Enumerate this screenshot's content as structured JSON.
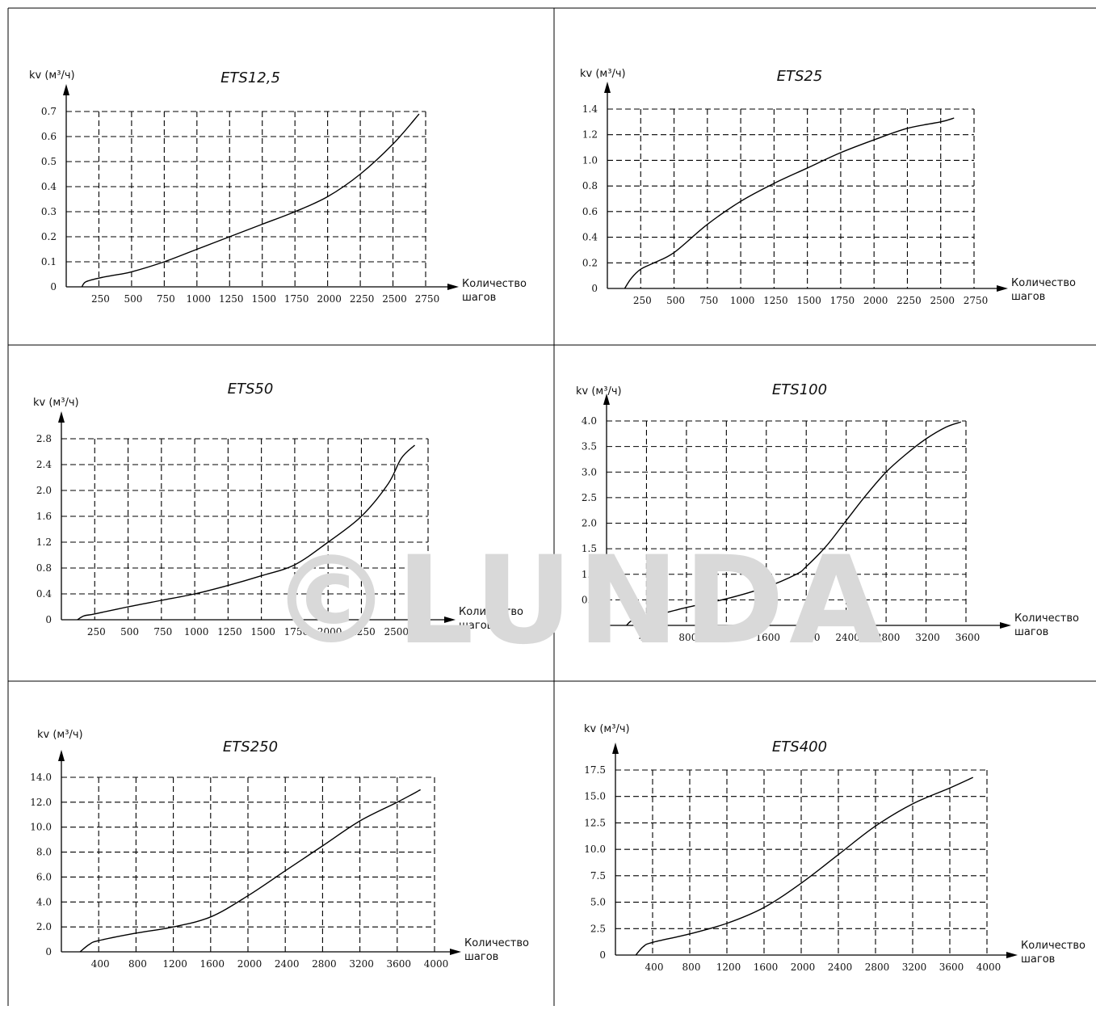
{
  "watermark": "©LUNDA",
  "colors": {
    "line": "#000000",
    "watermark": "#d9d9d9"
  },
  "chart_data": [
    {
      "type": "line",
      "title": "ETS12,5",
      "ylabel": "kv (м³/ч)",
      "xlabel": "Количество шагов",
      "x_ticks": [
        250,
        500,
        750,
        1000,
        1250,
        1500,
        1750,
        2000,
        2250,
        2500,
        2750
      ],
      "y_ticks": [
        "0",
        "0.1",
        "0.2",
        "0.3",
        "0.4",
        "0.5",
        "0.6",
        "0.7"
      ],
      "xlim": [
        0,
        2750
      ],
      "ylim": [
        0,
        0.7
      ],
      "grid": true,
      "series": [
        {
          "x": [
            120,
            150,
            250,
            350,
            500,
            750,
            1000,
            1250,
            1500,
            1750,
            2000,
            2250,
            2500,
            2700
          ],
          "y": [
            0.0,
            0.02,
            0.035,
            0.045,
            0.06,
            0.1,
            0.15,
            0.2,
            0.25,
            0.3,
            0.36,
            0.45,
            0.57,
            0.69
          ]
        }
      ]
    },
    {
      "type": "line",
      "title": "ETS25",
      "ylabel": "kv (м³/ч)",
      "xlabel": "Количество шагов",
      "x_ticks": [
        250,
        500,
        750,
        1000,
        1250,
        1500,
        1750,
        2000,
        2250,
        2500,
        2750
      ],
      "y_ticks": [
        "0",
        "0.2",
        "0.4",
        "0.6",
        "0.8",
        "1.0",
        "1.2",
        "1.4"
      ],
      "xlim": [
        0,
        2750
      ],
      "ylim": [
        0,
        1.4
      ],
      "grid": true,
      "series": [
        {
          "x": [
            130,
            180,
            250,
            350,
            500,
            750,
            1000,
            1250,
            1500,
            1750,
            2000,
            2250,
            2500,
            2600
          ],
          "y": [
            0.0,
            0.08,
            0.15,
            0.2,
            0.28,
            0.5,
            0.68,
            0.82,
            0.94,
            1.06,
            1.16,
            1.25,
            1.3,
            1.33
          ]
        }
      ]
    },
    {
      "type": "line",
      "title": "ETS50",
      "ylabel": "kv (м³/ч)",
      "xlabel": "Количество шагов",
      "x_ticks": [
        250,
        500,
        750,
        1000,
        1250,
        1500,
        1750,
        2000,
        2250,
        2500,
        2750
      ],
      "y_ticks": [
        "0",
        "0.4",
        "0.8",
        "1.2",
        "1.6",
        "2.0",
        "2.4",
        "2.8"
      ],
      "xlim": [
        0,
        2750
      ],
      "ylim": [
        0,
        2.8
      ],
      "grid": true,
      "series": [
        {
          "x": [
            120,
            170,
            250,
            500,
            750,
            1000,
            1250,
            1500,
            1750,
            2000,
            2250,
            2450,
            2550,
            2650
          ],
          "y": [
            0.0,
            0.06,
            0.09,
            0.2,
            0.3,
            0.4,
            0.53,
            0.68,
            0.85,
            1.2,
            1.6,
            2.1,
            2.5,
            2.7
          ]
        }
      ]
    },
    {
      "type": "line",
      "title": "ETS100",
      "ylabel": "kv (м³/ч)",
      "xlabel": "Количество шагов",
      "x_ticks": [
        400,
        800,
        1200,
        1600,
        2000,
        2400,
        2800,
        3200,
        3600
      ],
      "y_ticks": [
        "0",
        "0.5",
        "1.0",
        "1.5",
        "2.0",
        "2.5",
        "3.0",
        "3.5",
        "4.0"
      ],
      "xlim": [
        0,
        3600
      ],
      "ylim": [
        0,
        4.0
      ],
      "grid": true,
      "series": [
        {
          "x": [
            200,
            260,
            400,
            800,
            1200,
            1600,
            1900,
            2000,
            2200,
            2400,
            2600,
            2800,
            3000,
            3200,
            3400,
            3550
          ],
          "y": [
            0.0,
            0.1,
            0.15,
            0.35,
            0.52,
            0.75,
            1.0,
            1.15,
            1.55,
            2.05,
            2.55,
            3.0,
            3.35,
            3.65,
            3.88,
            3.98
          ]
        }
      ]
    },
    {
      "type": "line",
      "title": "ETS250",
      "ylabel": "kv (м³/ч)",
      "xlabel": "Количество шагов",
      "x_ticks": [
        400,
        800,
        1200,
        1600,
        2000,
        2400,
        2800,
        3200,
        3600,
        4000
      ],
      "y_ticks": [
        "0",
        "2.0",
        "4.0",
        "6.0",
        "8.0",
        "10.0",
        "12.0",
        "14.0"
      ],
      "xlim": [
        0,
        4000
      ],
      "ylim": [
        0,
        14.0
      ],
      "grid": true,
      "series": [
        {
          "x": [
            200,
            300,
            400,
            800,
            1200,
            1600,
            2000,
            2400,
            2800,
            3200,
            3600,
            3850
          ],
          "y": [
            0.0,
            0.6,
            0.9,
            1.5,
            2.0,
            2.8,
            4.5,
            6.5,
            8.5,
            10.5,
            12.0,
            13.0
          ]
        }
      ]
    },
    {
      "type": "line",
      "title": "ETS400",
      "ylabel": "kv (м³/ч)",
      "xlabel": "Количество шагов",
      "x_ticks": [
        400,
        800,
        1200,
        1600,
        2000,
        2400,
        2800,
        3200,
        3600,
        4000
      ],
      "y_ticks": [
        "0",
        "2.5",
        "5.0",
        "7.5",
        "10.0",
        "12.5",
        "15.0",
        "17.5"
      ],
      "xlim": [
        0,
        4000
      ],
      "ylim": [
        0,
        17.5
      ],
      "grid": true,
      "series": [
        {
          "x": [
            220,
            300,
            400,
            800,
            1200,
            1600,
            2000,
            2400,
            2800,
            3200,
            3600,
            3850
          ],
          "y": [
            0.0,
            0.8,
            1.2,
            2.0,
            3.0,
            4.5,
            6.8,
            9.5,
            12.2,
            14.3,
            15.8,
            16.8
          ]
        }
      ]
    }
  ]
}
